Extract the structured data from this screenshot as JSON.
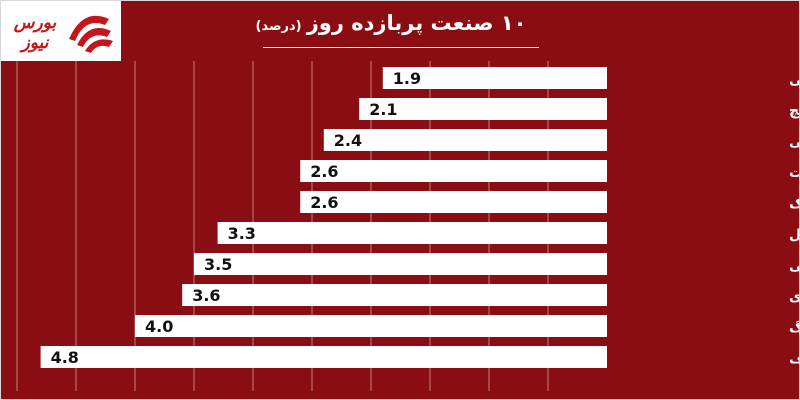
{
  "logo": {
    "text": "بورس نیوز",
    "icon": "bourse-news-logo"
  },
  "title": {
    "main": "۱۰ صنعت پربازده روز",
    "unit": "(درصد)"
  },
  "colors": {
    "background": "#8b0d14",
    "bar": "#ffffff",
    "grid": "#c77a7d",
    "label": "#ffffff",
    "value": "#111111"
  },
  "chart_data": {
    "type": "bar",
    "orientation": "horizontal",
    "title": "۱۰ صنعت پربازده روز (درصد)",
    "categories": [
      "خرده فروشی",
      "سیمان آهک گچ",
      "چندرشته ای صنعتی",
      "منسوجات",
      "کاشی و سرامیک",
      "سایر حمل و نقل",
      "فرآورده های نفتی",
      "محصولات کاغذی",
      "استخراج زغال سنگ",
      "استخراج نفت گاز جز اکتشاف"
    ],
    "values": [
      1.9,
      2.1,
      2.4,
      2.6,
      2.6,
      3.3,
      3.5,
      3.6,
      4.0,
      4.8
    ],
    "value_labels": [
      "1.9",
      "2.1",
      "2.4",
      "2.6",
      "2.6",
      "3.3",
      "3.5",
      "3.6",
      "4.0",
      "4.8"
    ],
    "xlim": [
      0,
      5.0
    ],
    "bar_direction": "right-to-left",
    "grid": true,
    "legend": "none"
  }
}
